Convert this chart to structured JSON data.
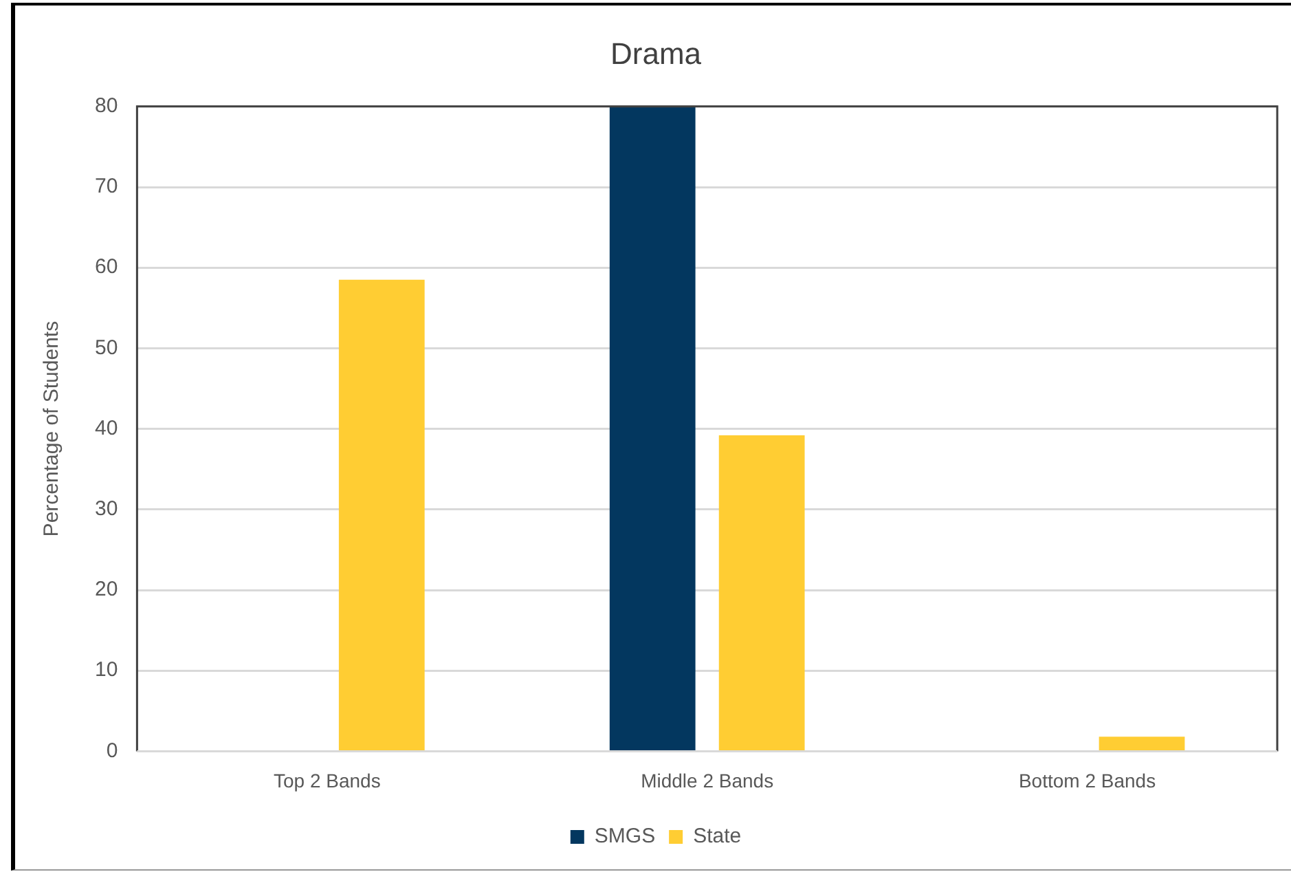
{
  "chart_data": {
    "type": "bar",
    "title": "Drama",
    "ylabel": "Percentage of Students",
    "categories": [
      "Top 2 Bands",
      "Middle 2 Bands",
      "Bottom 2 Bands"
    ],
    "series": [
      {
        "name": "SMGS",
        "color": "#03375f",
        "values": [
          null,
          80,
          null
        ]
      },
      {
        "name": "State",
        "color": "#ffcd33",
        "values": [
          58.5,
          39.2,
          1.8
        ]
      }
    ],
    "ylim": [
      0,
      80
    ],
    "yticks": [
      0,
      10,
      20,
      30,
      40,
      50,
      60,
      70,
      80
    ],
    "grid": "y",
    "legend": "bottom"
  }
}
